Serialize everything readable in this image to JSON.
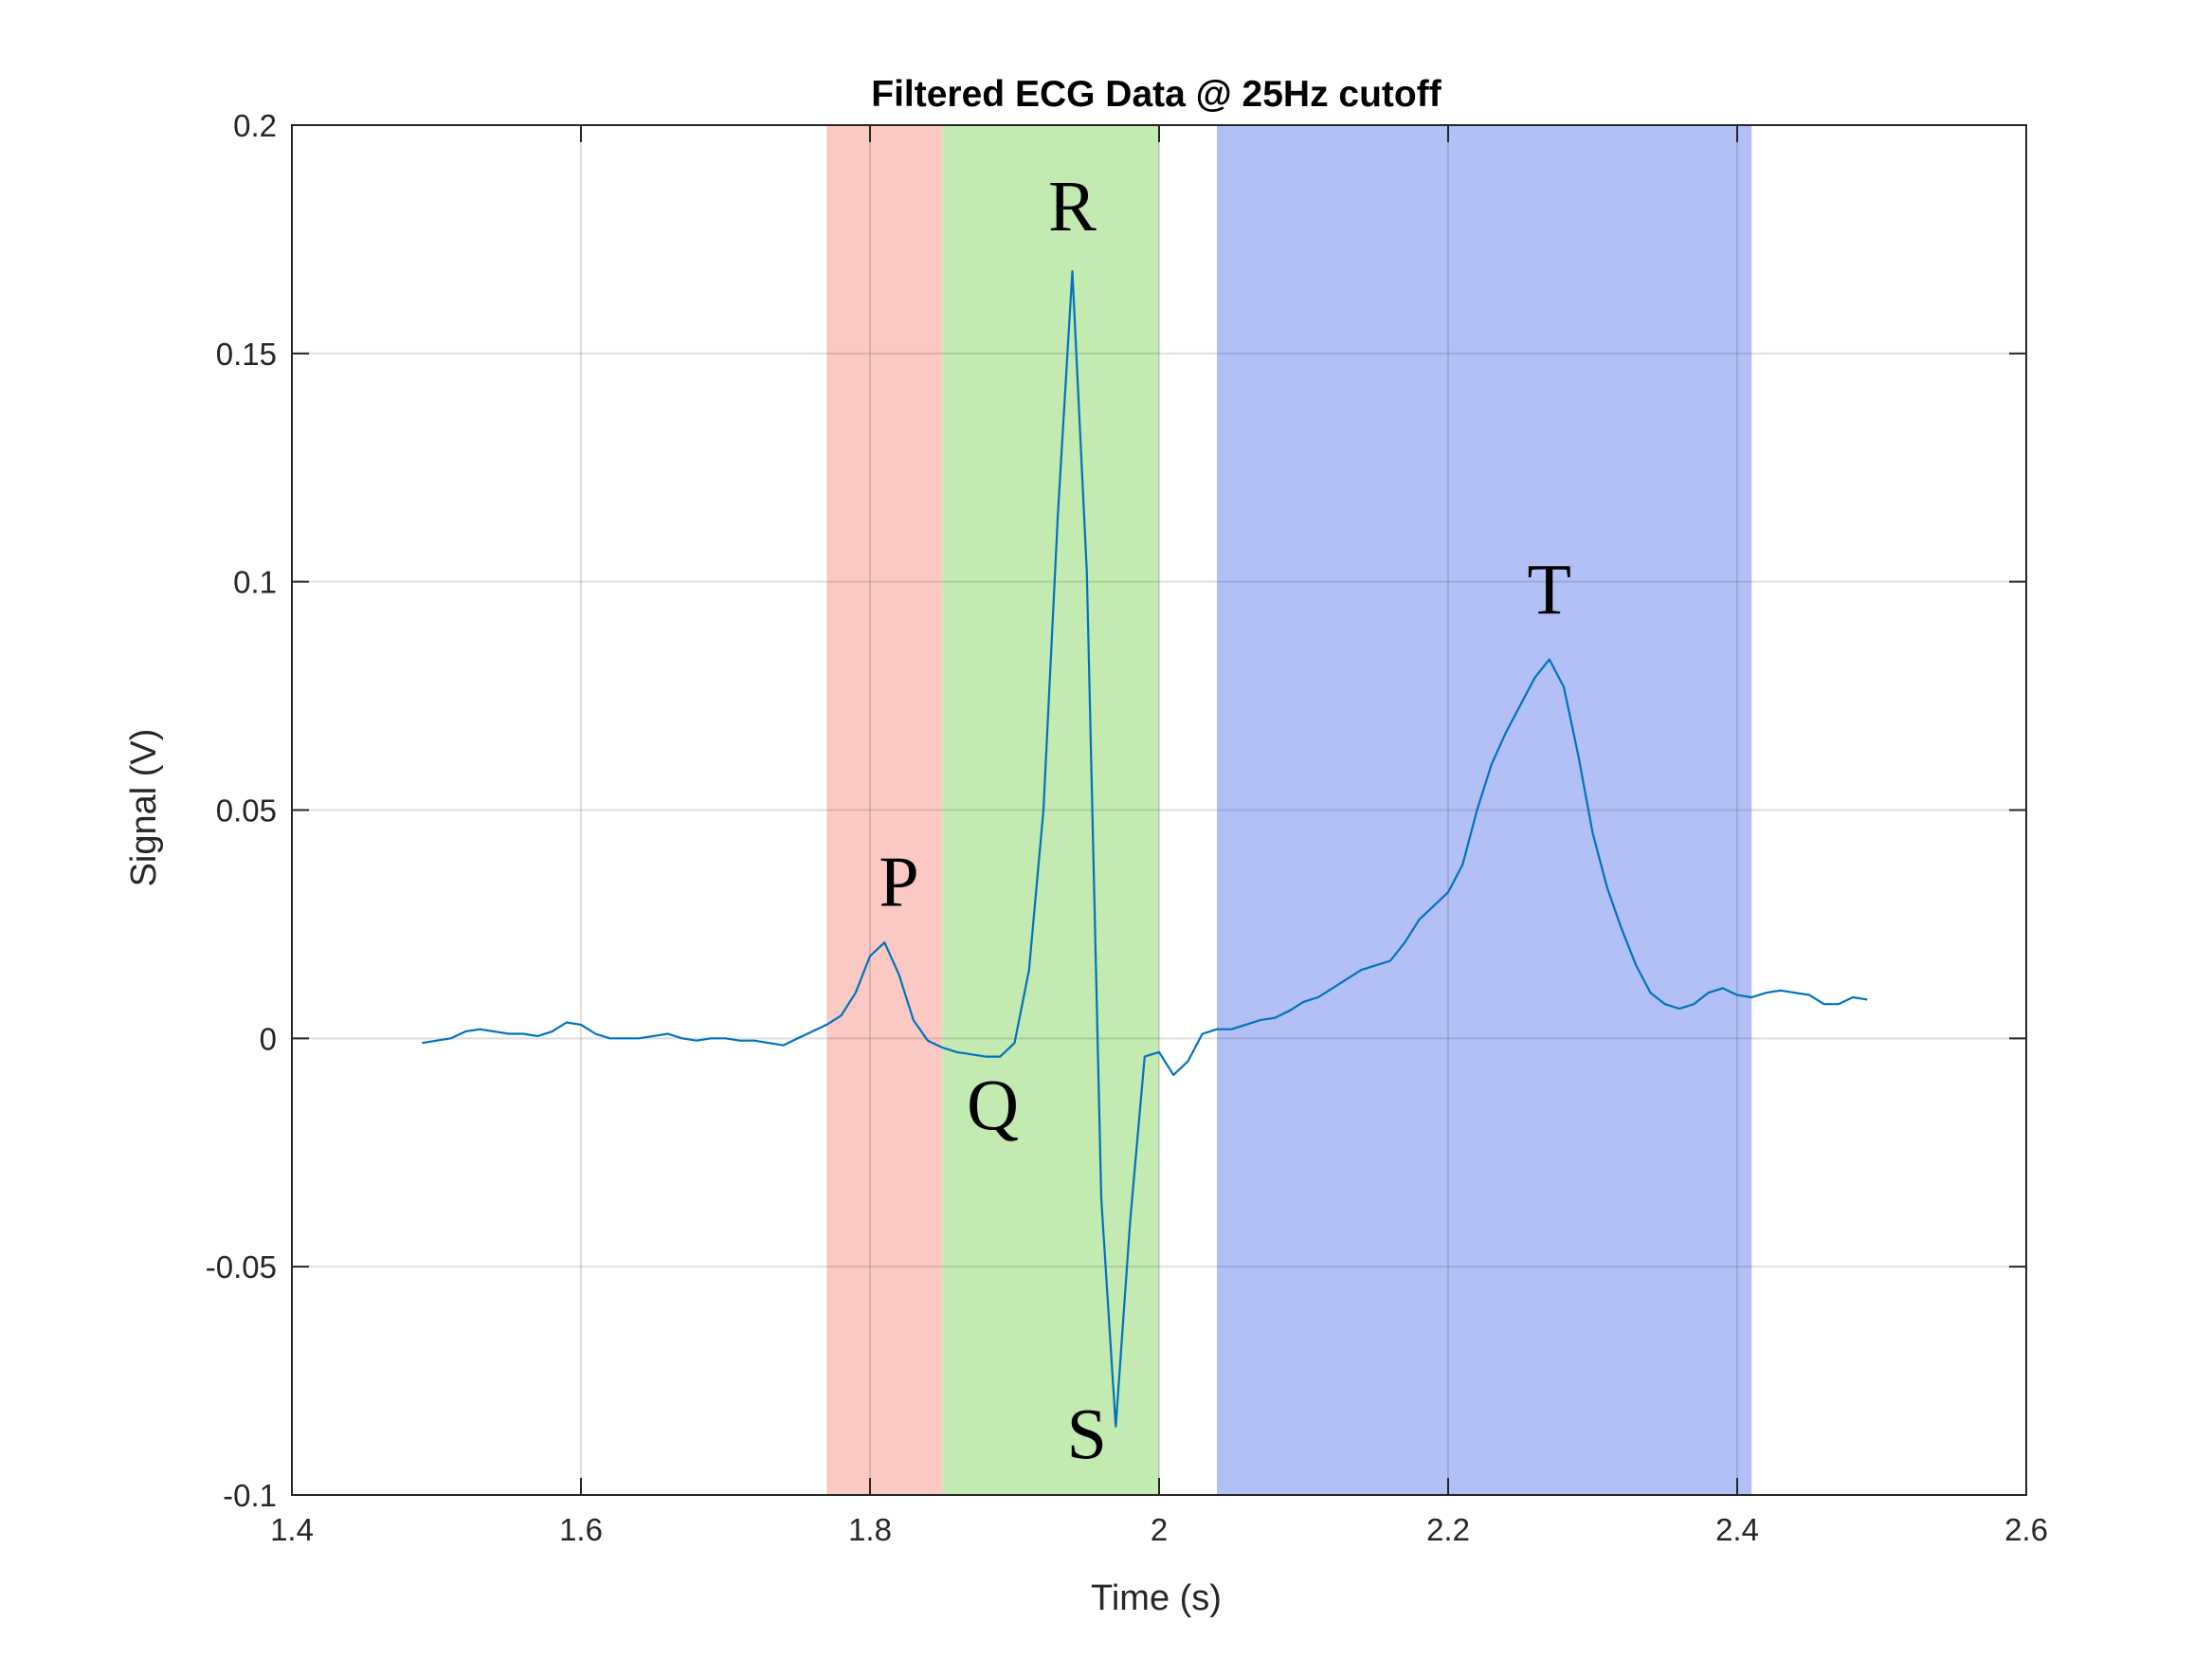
{
  "chart_data": {
    "type": "line",
    "title": "Filtered ECG Data @ 25Hz cutoff",
    "xlabel": "Time (s)",
    "ylabel": "Signal (V)",
    "xlim": [
      1.4,
      2.6
    ],
    "ylim": [
      -0.1,
      0.2
    ],
    "xticks": [
      1.4,
      1.6,
      1.8,
      2.0,
      2.2,
      2.4,
      2.6
    ],
    "xtick_labels": [
      "1.4",
      "1.6",
      "1.8",
      "2",
      "2.2",
      "2.4",
      "2.6"
    ],
    "yticks": [
      -0.1,
      -0.05,
      0,
      0.05,
      0.1,
      0.15,
      0.2
    ],
    "ytick_labels": [
      "-0.1",
      "-0.05",
      "0",
      "0.05",
      "0.1",
      "0.15",
      "0.2"
    ],
    "grid": true,
    "line_color": "#0072BD",
    "regions": [
      {
        "x0": 1.77,
        "x1": 1.85,
        "color": "#fbc9c3"
      },
      {
        "x0": 1.85,
        "x1": 2.0,
        "color": "#c2eab1"
      },
      {
        "x0": 2.04,
        "x1": 2.41,
        "color": "#b2c0f6"
      }
    ],
    "annotations": [
      {
        "text": "P",
        "x": 1.82,
        "y": 0.029
      },
      {
        "text": "Q",
        "x": 1.885,
        "y": -0.02
      },
      {
        "text": "R",
        "x": 1.94,
        "y": 0.177
      },
      {
        "text": "S",
        "x": 1.95,
        "y": -0.092
      },
      {
        "text": "T",
        "x": 2.27,
        "y": 0.093
      }
    ],
    "series": [
      {
        "x": [
          1.49,
          1.5,
          1.51,
          1.52,
          1.53,
          1.54,
          1.55,
          1.56,
          1.57,
          1.58,
          1.59,
          1.6,
          1.61,
          1.62,
          1.63,
          1.64,
          1.65,
          1.66,
          1.67,
          1.68,
          1.69,
          1.7,
          1.71,
          1.72,
          1.73,
          1.74,
          1.75,
          1.76,
          1.77,
          1.78,
          1.79,
          1.8,
          1.81,
          1.82,
          1.83,
          1.84,
          1.85,
          1.86,
          1.87,
          1.88,
          1.89,
          1.9,
          1.91,
          1.92,
          1.93,
          1.94,
          1.95,
          1.96,
          1.97,
          1.98,
          1.99,
          2.0,
          2.01,
          2.02,
          2.03,
          2.04,
          2.05,
          2.06,
          2.07,
          2.08,
          2.09,
          2.1,
          2.11,
          2.12,
          2.13,
          2.14,
          2.15,
          2.16,
          2.17,
          2.18,
          2.19,
          2.2,
          2.21,
          2.22,
          2.23,
          2.24,
          2.25,
          2.26,
          2.27,
          2.28,
          2.29,
          2.3,
          2.31,
          2.32,
          2.33,
          2.34,
          2.35,
          2.36,
          2.37,
          2.38,
          2.39,
          2.4,
          2.41,
          2.42,
          2.43,
          2.44,
          2.45,
          2.46,
          2.47,
          2.48,
          2.49
        ],
        "y": [
          -0.001,
          -0.0005,
          0,
          0.0015,
          0.002,
          0.0015,
          0.001,
          0.001,
          0.0005,
          0.0015,
          0.0035,
          0.003,
          0.001,
          0,
          0,
          0,
          0.0005,
          0.001,
          0,
          -0.0005,
          0,
          0,
          -0.0005,
          -0.0005,
          -0.001,
          -0.0015,
          0,
          0.0015,
          0.003,
          0.005,
          0.01,
          0.018,
          0.021,
          0.014,
          0.004,
          -0.0005,
          -0.002,
          -0.003,
          -0.0035,
          -0.004,
          -0.004,
          -0.001,
          0.015,
          0.05,
          0.115,
          0.168,
          0.102,
          -0.035,
          -0.085,
          -0.04,
          -0.004,
          -0.003,
          -0.008,
          -0.005,
          0.001,
          0.002,
          0.002,
          0.003,
          0.004,
          0.0045,
          0.006,
          0.008,
          0.009,
          0.011,
          0.013,
          0.015,
          0.016,
          0.017,
          0.021,
          0.026,
          0.029,
          0.032,
          0.038,
          0.05,
          0.06,
          0.067,
          0.073,
          0.079,
          0.083,
          0.077,
          0.062,
          0.045,
          0.033,
          0.024,
          0.016,
          0.01,
          0.0075,
          0.0065,
          0.0075,
          0.01,
          0.011,
          0.0095,
          0.009,
          0.01,
          0.0105,
          0.01,
          0.0095,
          0.0075,
          0.0075,
          0.009,
          0.0085
        ]
      }
    ]
  }
}
